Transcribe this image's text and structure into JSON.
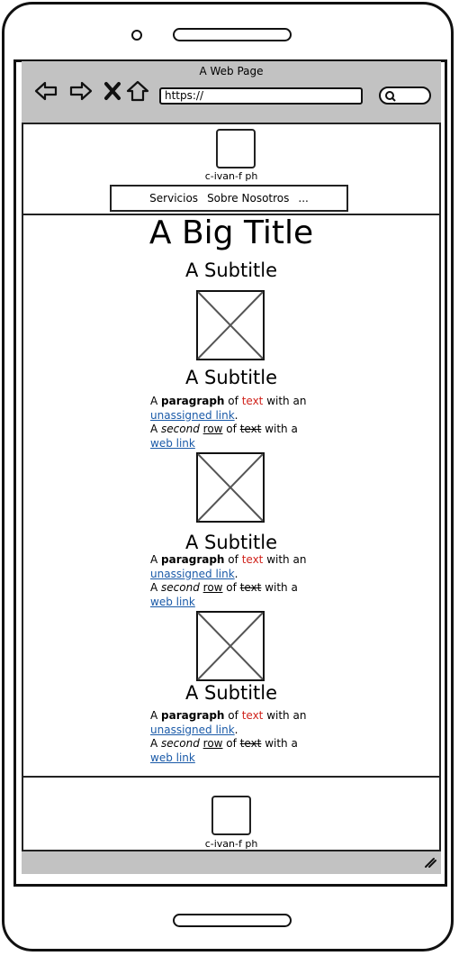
{
  "window": {
    "title": "A Web Page"
  },
  "addressbar": {
    "url": "https://"
  },
  "header": {
    "brand": "c-ivan-f ph",
    "nav": [
      "Servicios",
      "Sobre Nosotros",
      "..."
    ]
  },
  "main": {
    "title": "A Big Title",
    "subtitle": "A Subtitle",
    "sections": [
      {
        "subtitle": "A Subtitle",
        "p1_a": "A ",
        "p1_bold": "paragraph",
        "p1_b": " of ",
        "p1_red": "text",
        "p1_c": " with an",
        "link1": "unassigned link",
        "p1_end": ".",
        "p2_a": "A ",
        "p2_italic": "second",
        "p2_b": " ",
        "p2_underline": "row",
        "p2_c": " of ",
        "p2_strike": "text",
        "p2_d": " with a",
        "link2": "web link"
      },
      {
        "subtitle": "A Subtitle",
        "p1_a": "A ",
        "p1_bold": "paragraph",
        "p1_b": " of ",
        "p1_red": "text",
        "p1_c": " with an",
        "link1": "unassigned link",
        "p1_end": ".",
        "p2_a": "A ",
        "p2_italic": "second",
        "p2_b": " ",
        "p2_underline": "row",
        "p2_c": " of ",
        "p2_strike": "text",
        "p2_d": " with a",
        "link2": "web link"
      },
      {
        "subtitle": "A Subtitle",
        "p1_a": "A ",
        "p1_bold": "paragraph",
        "p1_b": " of ",
        "p1_red": "text",
        "p1_c": " with an",
        "link1": "unassigned link",
        "p1_end": ".",
        "p2_a": "A ",
        "p2_italic": "second",
        "p2_b": " ",
        "p2_underline": "row",
        "p2_c": " of ",
        "p2_strike": "text",
        "p2_d": " with a",
        "link2": "web link"
      }
    ]
  },
  "footer": {
    "brand": "c-ivan-f ph"
  },
  "colors": {
    "chrome": "#c2c2c2",
    "link": "#1a5aa8",
    "highlight": "#d0221b"
  },
  "icons": [
    "back-arrow-icon",
    "forward-arrow-icon",
    "close-icon",
    "home-icon",
    "search-icon",
    "resize-grip-icon",
    "image-placeholder-icon"
  ]
}
